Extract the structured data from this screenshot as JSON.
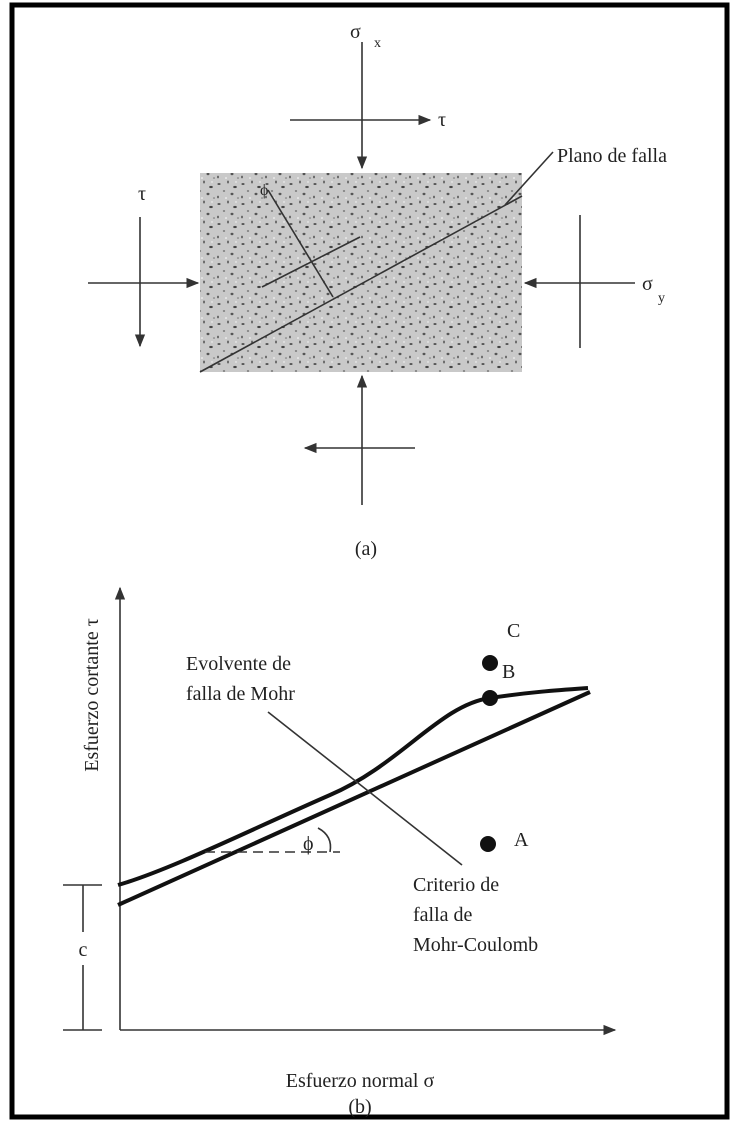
{
  "panel_a": {
    "sigma_x": "σ",
    "sigma_x_sub": "x",
    "tau_top": "τ",
    "failure_plane": "Plano de falla",
    "tau_left": "τ",
    "phi": "ϕ",
    "sigma_y": "σ",
    "sigma_y_sub": "y",
    "caption": "(a)"
  },
  "panel_b": {
    "y_axis_label": "Esfuerzo cortante τ",
    "x_axis_label": "Esfuerzo normal σ",
    "mohr_envelope": [
      "Evolvente de",
      "falla de Mohr"
    ],
    "mohr_coulomb": [
      "Criterio de",
      "falla de",
      "Mohr-Coulomb"
    ],
    "phi": "ϕ",
    "cohesion": "c",
    "points": [
      "C",
      "B",
      "A"
    ],
    "caption": "(b)"
  }
}
